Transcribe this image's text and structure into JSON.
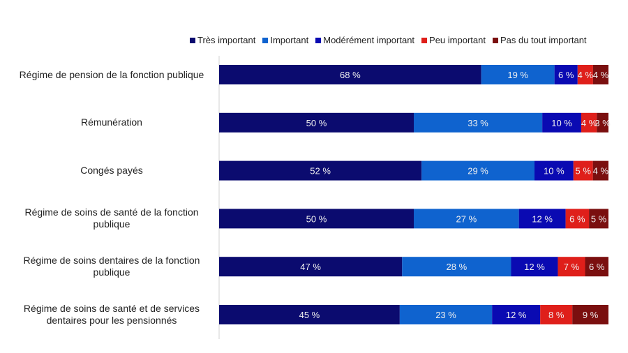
{
  "chart_data": {
    "type": "bar",
    "orientation": "horizontal",
    "stacked": true,
    "legend_position": "top",
    "grid": false,
    "categories": [
      "Régime de pension de la fonction publique",
      "Rémunération",
      "Congés payés",
      "Régime de soins de santé de la fonction publique",
      "Régime de soins dentaires de la fonction publique",
      "Régime de soins de santé et de services dentaires pour les pensionnés"
    ],
    "series": [
      {
        "name": "Très important",
        "color": "#0b0b6f",
        "values": [
          68,
          50,
          52,
          50,
          47,
          45
        ]
      },
      {
        "name": "Important",
        "color": "#0f63cf",
        "values": [
          19,
          33,
          29,
          27,
          28,
          23
        ]
      },
      {
        "name": "Modérément important",
        "color": "#0a0ab2",
        "values": [
          6,
          10,
          10,
          12,
          12,
          12
        ]
      },
      {
        "name": "Peu important",
        "color": "#df1f1a",
        "values": [
          4,
          4,
          5,
          6,
          7,
          8
        ]
      },
      {
        "name": "Pas du tout important",
        "color": "#7a0f0f",
        "values": [
          4,
          3,
          4,
          5,
          6,
          9
        ]
      }
    ],
    "label_suffix": " %"
  }
}
